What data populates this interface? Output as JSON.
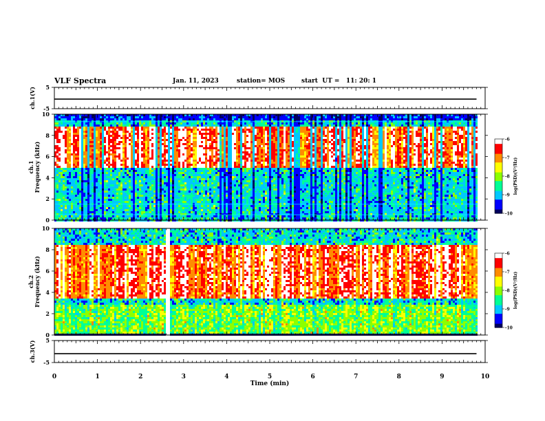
{
  "header": {
    "title": "VLF Spectra",
    "date": "Jan. 11, 2023",
    "station": "station= MOS",
    "start": "start  UT =   11: 20: 1"
  },
  "colors": {
    "ch1_trace": "#000000",
    "ch3_trace": "#000000",
    "colormap": [
      "#000060",
      "#0000ff",
      "#00c8ff",
      "#00ff96",
      "#8cff00",
      "#ffff00",
      "#ff8c00",
      "#ff0000",
      "#ffffff"
    ]
  },
  "chart_data": [
    {
      "type": "line",
      "ylabel": "ch.1(V)",
      "ylim": [
        -5,
        5
      ],
      "y_ticks": [
        "5",
        "-5"
      ],
      "series": [
        {
          "x": [
            0,
            9.8
          ],
          "y": [
            -0.5,
            -0.5
          ]
        }
      ]
    },
    {
      "type": "heatmap",
      "ylabel": "ch.1\nFrequency (kHz)",
      "ylim": [
        0,
        10
      ],
      "y_ticks": [
        "0",
        "2",
        "4",
        "6",
        "8",
        "10"
      ],
      "colorbar": {
        "label": "log(PSD)(V²/Hz)",
        "ticks": [
          "-6",
          "-7",
          "-8",
          "-9",
          "-10"
        ],
        "range": [
          -10,
          -6
        ]
      },
      "description_bands": {
        "strong_band_khz": [
          5,
          9
        ],
        "weak_band_khz": [
          0.5,
          4
        ],
        "line_freqs_khz": [
          0.5,
          1.5,
          9.3
        ]
      }
    },
    {
      "type": "heatmap",
      "ylabel": "ch.2\nFrequency (kHz)",
      "ylim": [
        0,
        10
      ],
      "y_ticks": [
        "0",
        "2",
        "4",
        "6",
        "8",
        "10"
      ],
      "colorbar": {
        "label": "log(PSD)(V²/Hz)",
        "ticks": [
          "-6",
          "-7",
          "-8",
          "-9",
          "-10"
        ],
        "range": [
          -10,
          -6
        ]
      },
      "description_bands": {
        "strong_band_khz": [
          3.5,
          8.5
        ],
        "weak_band_khz": [
          0.3,
          3
        ],
        "bright_column_min": 2.62
      }
    },
    {
      "type": "line",
      "ylabel": "ch.3(V)",
      "ylim": [
        -5,
        5
      ],
      "y_ticks": [
        "5",
        "-5"
      ],
      "series": [
        {
          "x": [
            0,
            9.8
          ],
          "y": [
            -1.0,
            -1.0
          ]
        }
      ]
    }
  ],
  "x_axis": {
    "label": "Time  (min)",
    "range": [
      0,
      10
    ],
    "ticks": [
      "0",
      "1",
      "2",
      "3",
      "4",
      "5",
      "6",
      "7",
      "8",
      "9",
      "10"
    ]
  }
}
